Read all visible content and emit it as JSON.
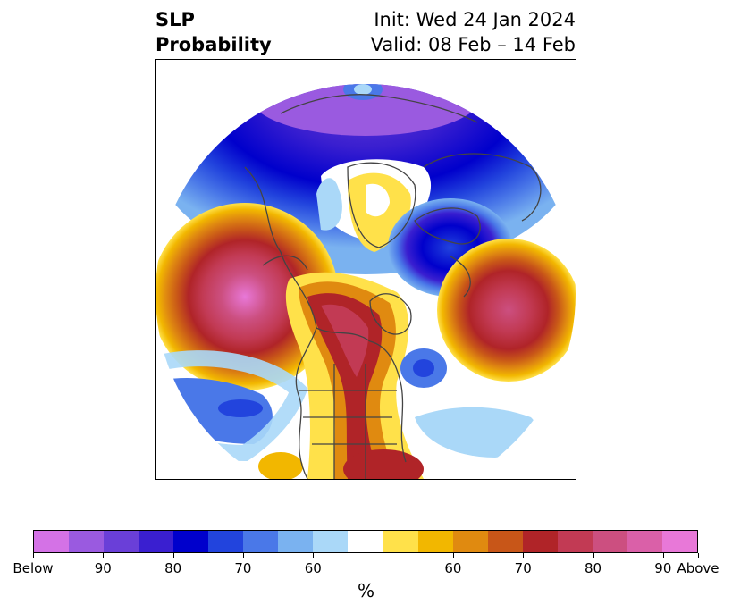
{
  "title": {
    "left_line1": "SLP",
    "left_line2": "Probability",
    "right_line1": "Init: Wed 24 Jan 2024",
    "right_line2": "Valid: 08 Feb – 14 Feb"
  },
  "colorbar": {
    "unit": "%",
    "colors": [
      "#d472e6",
      "#9a5ae0",
      "#6a3fd8",
      "#3a1fd0",
      "#0000cc",
      "#2244dd",
      "#4a78e8",
      "#7ab2f0",
      "#aad8f8",
      "#ffffff",
      "#ffe14a",
      "#f2b700",
      "#e08a10",
      "#c85618",
      "#b02428",
      "#c23a54",
      "#cc4f80",
      "#da60a8",
      "#e878d8"
    ],
    "ticks": [
      "Below",
      "90",
      "80",
      "70",
      "60",
      "60",
      "70",
      "80",
      "90",
      "Above"
    ]
  },
  "legend_colors": {
    "below_extreme": "#d472e6",
    "below_strong": "#0000cc",
    "below_weak": "#aad8f8",
    "neutral": "#ffffff",
    "above_weak": "#ffe14a",
    "above_strong": "#b02428",
    "above_extreme": "#e878d8",
    "coastline": "#444444"
  }
}
